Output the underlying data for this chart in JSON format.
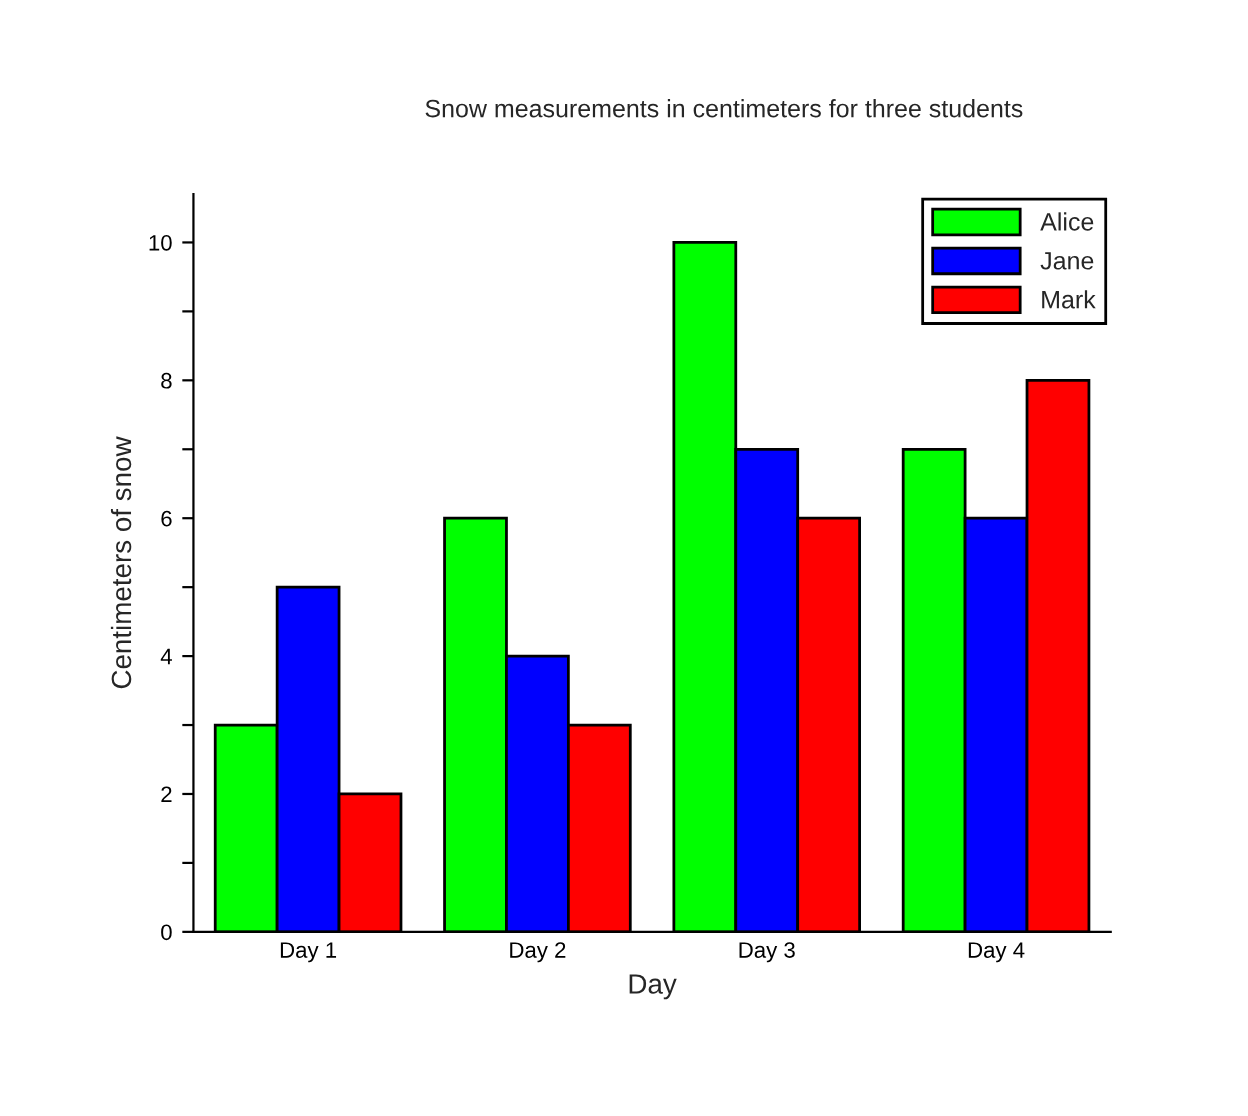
{
  "chart_data": {
    "type": "bar",
    "title": "Snow measurements in centimeters for three students",
    "xlabel": "Day",
    "ylabel": "Centimeters of snow",
    "categories": [
      "Day 1",
      "Day 2",
      "Day 3",
      "Day 4"
    ],
    "series": [
      {
        "name": "Alice",
        "color": "#00ff00",
        "values": [
          3,
          6,
          10,
          7
        ]
      },
      {
        "name": "Jane",
        "color": "#0000ff",
        "values": [
          5,
          4,
          7,
          6
        ]
      },
      {
        "name": "Mark",
        "color": "#ff0000",
        "values": [
          2,
          3,
          6,
          8
        ]
      }
    ],
    "ylim": [
      0,
      10.7
    ],
    "yticks": [
      0,
      {
        "value": 1,
        "label": null
      },
      2,
      {
        "value": 3,
        "label": null
      },
      4,
      {
        "value": 5,
        "label": null
      },
      6,
      {
        "value": 7,
        "label": null
      },
      8,
      {
        "value": 9,
        "label": null
      },
      10
    ],
    "grid": false,
    "legend": "top right"
  }
}
